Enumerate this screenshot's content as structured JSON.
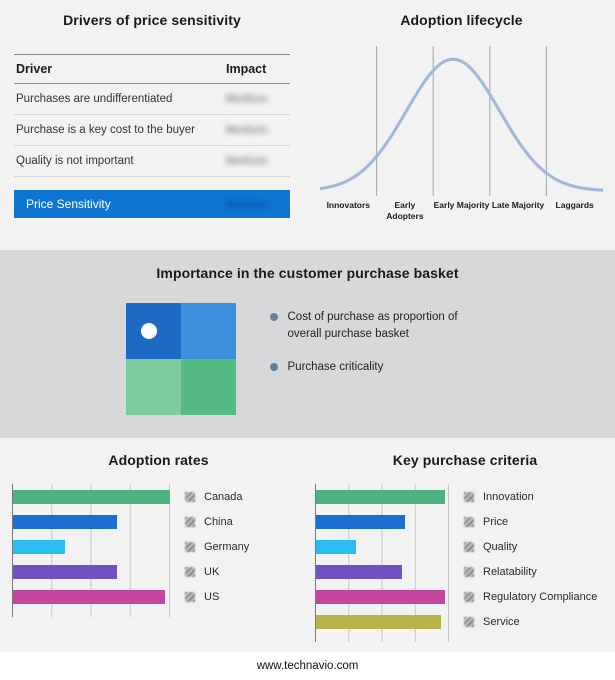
{
  "page": {
    "footer_url": "www.technavio.com"
  },
  "drivers_panel": {
    "title": "Drivers of price sensitivity",
    "columns": [
      "Driver",
      "Impact"
    ],
    "rows": [
      {
        "driver": "Purchases are undifferentiated",
        "impact": "Medium"
      },
      {
        "driver": "Purchase is a key cost to the buyer",
        "impact": "Medium"
      },
      {
        "driver": "Quality is not important",
        "impact": "Medium"
      }
    ],
    "summary_row": {
      "label": "Price Sensitivity",
      "impact": "Medium"
    },
    "highlight_color": "#0e76d2"
  },
  "basket_panel": {
    "title": "Importance in the customer purchase basket",
    "bullets": [
      "Cost of purchase as proportion of overall purchase basket",
      "Purchase criticality"
    ],
    "quadrant_colors": [
      "#1d6ac5",
      "#3e8ede",
      "#7ecc9e",
      "#56bb82"
    ]
  },
  "chart_data": [
    {
      "type": "line",
      "name": "adoption-lifecycle",
      "title": "Adoption lifecycle",
      "categories": [
        "Innovators",
        "Early Adopters",
        "Early Majority",
        "Late Majority",
        "Laggards"
      ],
      "curve": {
        "shape": "bell",
        "peak_x": 0.47,
        "sigma": 0.165
      },
      "line_color": "#a3b8d8",
      "grid": "vertical-stage-dividers",
      "grid_color": "#a9a9aa"
    },
    {
      "type": "bar",
      "name": "adoption-rates",
      "title": "Adoption rates",
      "orientation": "horizontal",
      "categories": [
        "Canada",
        "China",
        "Germany",
        "UK",
        "US"
      ],
      "values": [
        100,
        66,
        33,
        66,
        97
      ],
      "colors": [
        "#4cb380",
        "#1b6fd0",
        "#29bdf2",
        "#7152c2",
        "#c2459e"
      ],
      "xlim": [
        0,
        100
      ],
      "grid": "vertical",
      "legend_position": "right"
    },
    {
      "type": "bar",
      "name": "key-purchase-criteria",
      "title": "Key purchase criteria",
      "orientation": "horizontal",
      "categories": [
        "Innovation",
        "Price",
        "Quality",
        "Relatability",
        "Regulatory Compliance",
        "Service"
      ],
      "values": [
        97,
        67,
        30,
        65,
        97,
        94
      ],
      "colors": [
        "#4cb380",
        "#1b6fd0",
        "#29bdf2",
        "#7152c2",
        "#c2459e",
        "#b7b347"
      ],
      "xlim": [
        0,
        100
      ],
      "grid": "vertical",
      "legend_position": "right"
    }
  ]
}
